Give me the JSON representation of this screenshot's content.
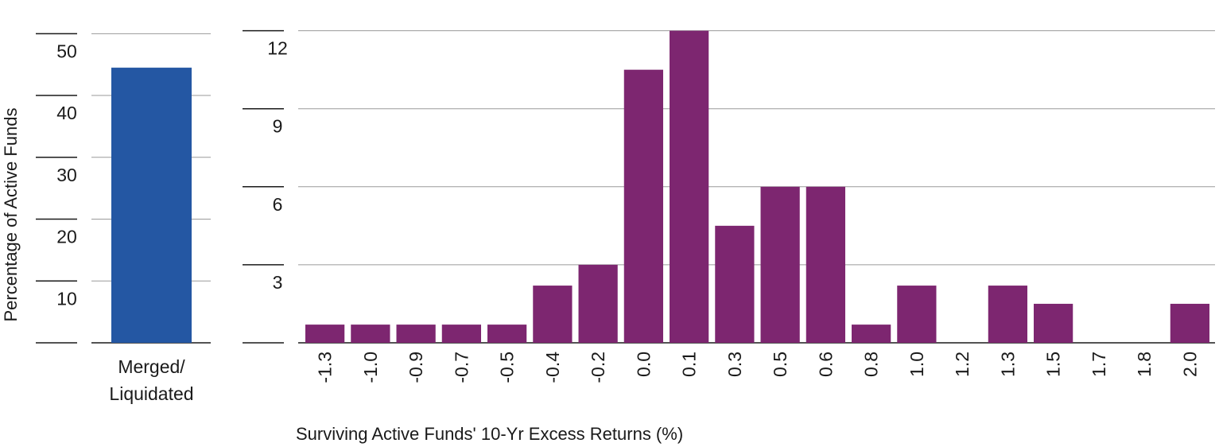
{
  "chart_data": [
    {
      "type": "bar",
      "ylabel": "Percentage of Active Funds",
      "xlabel": "",
      "categories": [
        "Merged/ Liquidated"
      ],
      "category_lines": [
        [
          "Merged/",
          "Liquidated"
        ]
      ],
      "values": [
        44.5
      ],
      "ylim": [
        0,
        53
      ],
      "yticks": [
        10,
        20,
        30,
        40,
        50
      ],
      "grid": true,
      "color": "#2457a3"
    },
    {
      "type": "bar",
      "xlabel": "Surviving Active Funds' 10-Yr Excess Returns (%)",
      "ylabel": "",
      "categories": [
        "-1.3",
        "-1.0",
        "-0.9",
        "-0.7",
        "-0.5",
        "-0.4",
        "-0.2",
        "0.0",
        "0.1",
        "0.3",
        "0.5",
        "0.6",
        "0.8",
        "1.0",
        "1.2",
        "1.3",
        "1.5",
        "1.7",
        "1.8",
        "2.0"
      ],
      "values": [
        0.7,
        0.7,
        0.7,
        0.7,
        0.7,
        2.2,
        3.0,
        10.5,
        12.0,
        4.5,
        6.0,
        6.0,
        0.7,
        2.2,
        0,
        2.2,
        1.5,
        0,
        0,
        1.5
      ],
      "ylim": [
        0,
        12.6
      ],
      "yticks": [
        3,
        6,
        9,
        12
      ],
      "grid": true,
      "color": "#7d2670"
    }
  ]
}
